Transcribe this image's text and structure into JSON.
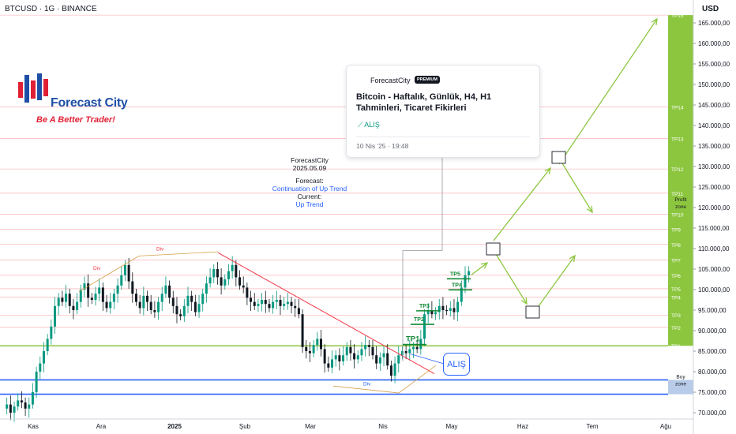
{
  "header": {
    "symbol_title": "BTCUSD · 1G · BINANCE",
    "currency": "USD"
  },
  "logo": {
    "name": "Forecast City",
    "tagline": "Be A Better Trader!"
  },
  "idea_card": {
    "author": "ForecastCity",
    "badge": "PREMIUM",
    "title": "Bitcoin - Haftalık, Günlük, H4, H1 Tahminleri, Ticaret Fikirleri",
    "signal": "⟋ ALIŞ",
    "date": "10 Nis '25 · 19:48"
  },
  "forecast_note": {
    "author": "ForecastCity",
    "date": "2025.05.09",
    "forecast_label": "Forecast:",
    "forecast_value": "Continuation of Up Trend",
    "current_label": "Current:",
    "current_value": "Up Trend"
  },
  "alis_label": "ALIŞ",
  "chart_data": {
    "type": "candlestick",
    "x_ticks": [
      "Kas",
      "Ara",
      "2025",
      "Şub",
      "Mar",
      "Nis",
      "May",
      "Haz",
      "Tem",
      "Ağu"
    ],
    "y_ticks": [
      "70.000,00",
      "75.000,00",
      "80.000,00",
      "85.000,00",
      "90.000,00",
      "95.000,00",
      "100.000,00",
      "105.000,00",
      "110.000,00",
      "115.000,00",
      "120.000,00",
      "125.000,00",
      "130.000,00",
      "135.000,00",
      "140.000,00",
      "145.000,00",
      "150.000,00",
      "155.000,00",
      "160.000,00",
      "165.000,00"
    ],
    "ylim": [
      69000,
      167500
    ],
    "tp_levels": [
      {
        "label": "TP1",
        "value": 86300
      },
      {
        "label": "TP2",
        "value": 90800
      },
      {
        "label": "TP3",
        "value": 93800
      },
      {
        "label": "TP4",
        "value": 98200
      },
      {
        "label": "TP5",
        "value": 100200
      },
      {
        "label": "TP6",
        "value": 103500
      },
      {
        "label": "TP7",
        "value": 107200
      },
      {
        "label": "TP8",
        "value": 111000
      },
      {
        "label": "TP9",
        "value": 114700
      },
      {
        "label": "TP10",
        "value": 118400
      },
      {
        "label": "TP11",
        "value": 123500
      },
      {
        "label": "TP12",
        "value": 129400
      },
      {
        "label": "TP13",
        "value": 136800
      },
      {
        "label": "TP14",
        "value": 144500
      },
      {
        "label": "TP15",
        "value": 166900
      }
    ],
    "chart_tp_labels": [
      {
        "label": "TP1",
        "value": 87400
      },
      {
        "label": "TP2",
        "value": 92300
      },
      {
        "label": "TP3",
        "value": 95600
      },
      {
        "label": "TP4",
        "value": 100700
      },
      {
        "label": "TP5",
        "value": 103400
      }
    ],
    "support_levels": [
      86300,
      78000,
      74500
    ],
    "profit_zone_label": "Profit zone",
    "buy_zone_label": "Buy zone",
    "div_labels": [
      "Div",
      "Div",
      "Div"
    ],
    "price_series": [
      71000,
      72000,
      70000,
      71500,
      73000,
      72500,
      71000,
      72000,
      75000,
      80000,
      82000,
      85000,
      88000,
      91000,
      96000,
      98000,
      97000,
      99000,
      96000,
      95000,
      97000,
      100000,
      101500,
      98000,
      97500,
      99000,
      100500,
      97000,
      95500,
      97000,
      99000,
      101000,
      103500,
      106000,
      102000,
      99000,
      97000,
      95500,
      98500,
      97000,
      95000,
      94500,
      97000,
      99000,
      101000,
      98000,
      96000,
      94000,
      93500,
      96000,
      98500,
      97000,
      94500,
      96500,
      99000,
      101500,
      103000,
      105000,
      103000,
      101000,
      102500,
      104500,
      106000,
      103000,
      101000,
      100500,
      98000,
      97000,
      96000,
      96500,
      97500,
      96500,
      95500,
      97000,
      97500,
      96000,
      96500,
      97000,
      96000,
      95500,
      94000,
      86000,
      85000,
      84500,
      86500,
      88000,
      85500,
      82000,
      81000,
      83000,
      84000,
      82500,
      84000,
      86000,
      84500,
      83000,
      84000,
      85500,
      86500,
      86000,
      84000,
      82000,
      83500,
      84500,
      81500,
      79000,
      82000,
      84000,
      85000,
      84500,
      85500,
      86000,
      85500,
      88000,
      94000,
      95000,
      94000,
      94500,
      96000,
      95000,
      94800,
      95500,
      94500,
      97000,
      100500,
      103500,
      104500
    ],
    "projection_path": [
      {
        "date_index": 0,
        "value": 103600
      },
      {
        "date_index": 1,
        "value": 110000
      },
      {
        "date_index": 2,
        "value": 94200
      },
      {
        "date_index": 3,
        "value": 108500
      }
    ]
  },
  "colors": {
    "candle_up": "#089981",
    "candle_down": "#101820",
    "tp_line": "#f23645",
    "tp_axis": "#8cc63f",
    "projection": "#8cc63f",
    "support": "#2962ff",
    "trend": "#f23645"
  }
}
